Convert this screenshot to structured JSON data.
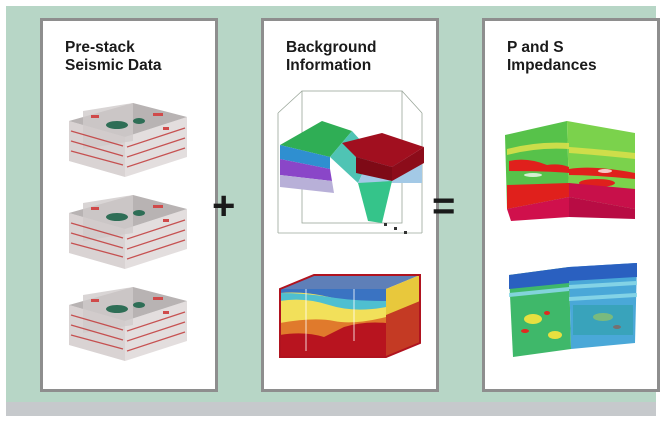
{
  "panels": [
    {
      "title_lines": [
        "Pre-stack",
        "Seismic Data"
      ]
    },
    {
      "title_lines": [
        "Background",
        "Information"
      ]
    },
    {
      "title_lines": [
        "P and S",
        "Impedances"
      ]
    }
  ],
  "operators": {
    "plus": "+",
    "equals": "="
  },
  "colors": {
    "stage": "#b7d6c6",
    "panel_border": "#8e8e8e",
    "footer_bar": "#c6c9cc"
  }
}
